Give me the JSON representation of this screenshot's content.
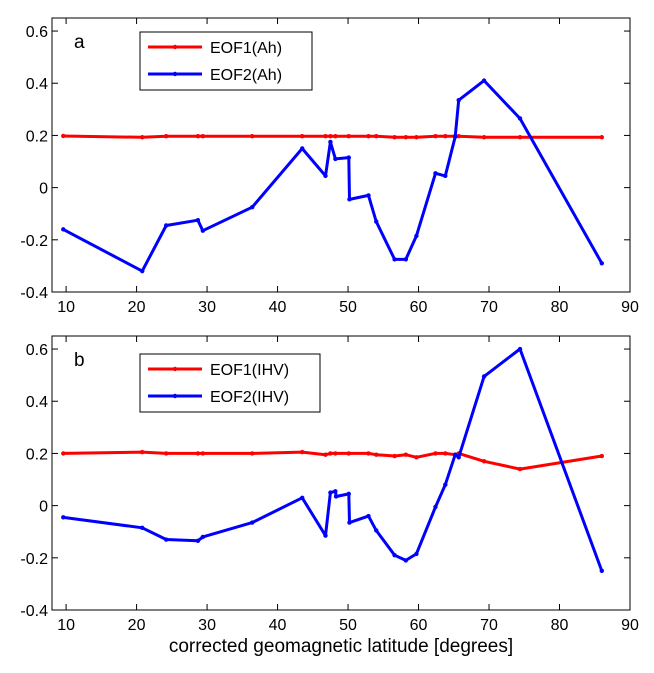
{
  "chart_data": [
    {
      "type": "line",
      "panel_label": "a",
      "xlabel": "",
      "ylabel": "",
      "xlim": [
        8,
        90
      ],
      "ylim": [
        -0.4,
        0.65
      ],
      "xticks": [
        10,
        20,
        30,
        40,
        50,
        60,
        70,
        80,
        90
      ],
      "yticks": [
        -0.4,
        -0.2,
        0,
        0.2,
        0.4,
        0.6
      ],
      "x_tick_labels": [
        "10",
        "20",
        "30",
        "40",
        "50",
        "60",
        "70",
        "80",
        "90"
      ],
      "y_tick_labels": [
        "-0.4",
        "-0.2",
        "0",
        "0.2",
        "0.4",
        "0.6"
      ],
      "grid": false,
      "legend_position": "top-left",
      "series": [
        {
          "name": "EOF1(Ah)",
          "color": "#ff0000",
          "points": [
            [
              9.6,
              0.198
            ],
            [
              20.8,
              0.193
            ],
            [
              24.2,
              0.197
            ],
            [
              28.7,
              0.197
            ],
            [
              29.4,
              0.197
            ],
            [
              36.4,
              0.197
            ],
            [
              43.5,
              0.197
            ],
            [
              46.8,
              0.197
            ],
            [
              47.5,
              0.197
            ],
            [
              48.2,
              0.197
            ],
            [
              50.1,
              0.197
            ],
            [
              52.9,
              0.197
            ],
            [
              54.0,
              0.197
            ],
            [
              56.6,
              0.193
            ],
            [
              58.2,
              0.193
            ],
            [
              59.7,
              0.193
            ],
            [
              62.4,
              0.197
            ],
            [
              63.8,
              0.197
            ],
            [
              65.2,
              0.197
            ],
            [
              65.7,
              0.197
            ],
            [
              69.3,
              0.193
            ],
            [
              74.4,
              0.193
            ],
            [
              86.0,
              0.193
            ]
          ]
        },
        {
          "name": "EOF2(Ah)",
          "color": "#0000ff",
          "points": [
            [
              9.6,
              -0.16
            ],
            [
              20.8,
              -0.32
            ],
            [
              24.2,
              -0.145
            ],
            [
              28.7,
              -0.125
            ],
            [
              29.4,
              -0.165
            ],
            [
              36.4,
              -0.075
            ],
            [
              43.5,
              0.15
            ],
            [
              46.8,
              0.045
            ],
            [
              47.5,
              0.175
            ],
            [
              48.2,
              0.11
            ],
            [
              50.1,
              0.115
            ],
            [
              50.2,
              -0.045
            ],
            [
              52.9,
              -0.03
            ],
            [
              54.0,
              -0.13
            ],
            [
              56.6,
              -0.275
            ],
            [
              58.2,
              -0.275
            ],
            [
              59.7,
              -0.185
            ],
            [
              62.4,
              0.055
            ],
            [
              63.8,
              0.045
            ],
            [
              65.2,
              0.195
            ],
            [
              65.7,
              0.335
            ],
            [
              69.3,
              0.41
            ],
            [
              74.4,
              0.265
            ],
            [
              86.0,
              -0.29
            ]
          ]
        }
      ]
    },
    {
      "type": "line",
      "panel_label": "b",
      "xlabel": "corrected geomagnetic latitude [degrees]",
      "ylabel": "",
      "xlim": [
        8,
        90
      ],
      "ylim": [
        -0.4,
        0.65
      ],
      "xticks": [
        10,
        20,
        30,
        40,
        50,
        60,
        70,
        80,
        90
      ],
      "yticks": [
        -0.4,
        -0.2,
        0,
        0.2,
        0.4,
        0.6
      ],
      "x_tick_labels": [
        "10",
        "20",
        "30",
        "40",
        "50",
        "60",
        "70",
        "80",
        "90"
      ],
      "y_tick_labels": [
        "-0.4",
        "-0.2",
        "0",
        "0.2",
        "0.4",
        "0.6"
      ],
      "grid": false,
      "legend_position": "top-left",
      "series": [
        {
          "name": "EOF1(IHV)",
          "color": "#ff0000",
          "points": [
            [
              9.6,
              0.2
            ],
            [
              20.8,
              0.205
            ],
            [
              24.2,
              0.2
            ],
            [
              28.7,
              0.2
            ],
            [
              29.4,
              0.2
            ],
            [
              36.4,
              0.2
            ],
            [
              43.5,
              0.205
            ],
            [
              46.8,
              0.195
            ],
            [
              47.5,
              0.2
            ],
            [
              48.2,
              0.2
            ],
            [
              50.1,
              0.2
            ],
            [
              52.9,
              0.2
            ],
            [
              54.0,
              0.195
            ],
            [
              56.6,
              0.19
            ],
            [
              58.2,
              0.195
            ],
            [
              59.7,
              0.185
            ],
            [
              62.4,
              0.2
            ],
            [
              63.8,
              0.2
            ],
            [
              65.2,
              0.195
            ],
            [
              65.7,
              0.2
            ],
            [
              69.3,
              0.17
            ],
            [
              74.4,
              0.14
            ],
            [
              86.0,
              0.19
            ]
          ]
        },
        {
          "name": "EOF2(IHV)",
          "color": "#0000ff",
          "points": [
            [
              9.6,
              -0.045
            ],
            [
              20.8,
              -0.085
            ],
            [
              24.2,
              -0.13
            ],
            [
              28.7,
              -0.135
            ],
            [
              29.4,
              -0.12
            ],
            [
              36.4,
              -0.065
            ],
            [
              43.5,
              0.03
            ],
            [
              46.8,
              -0.115
            ],
            [
              47.5,
              0.05
            ],
            [
              48.2,
              0.055
            ],
            [
              48.3,
              0.035
            ],
            [
              50.1,
              0.045
            ],
            [
              50.2,
              -0.065
            ],
            [
              52.9,
              -0.04
            ],
            [
              54.0,
              -0.095
            ],
            [
              56.6,
              -0.19
            ],
            [
              58.2,
              -0.21
            ],
            [
              59.7,
              -0.185
            ],
            [
              62.4,
              -0.005
            ],
            [
              63.8,
              0.08
            ],
            [
              65.2,
              0.195
            ],
            [
              65.7,
              0.185
            ],
            [
              69.3,
              0.495
            ],
            [
              74.4,
              0.6
            ],
            [
              86.0,
              -0.25
            ]
          ]
        }
      ]
    }
  ]
}
